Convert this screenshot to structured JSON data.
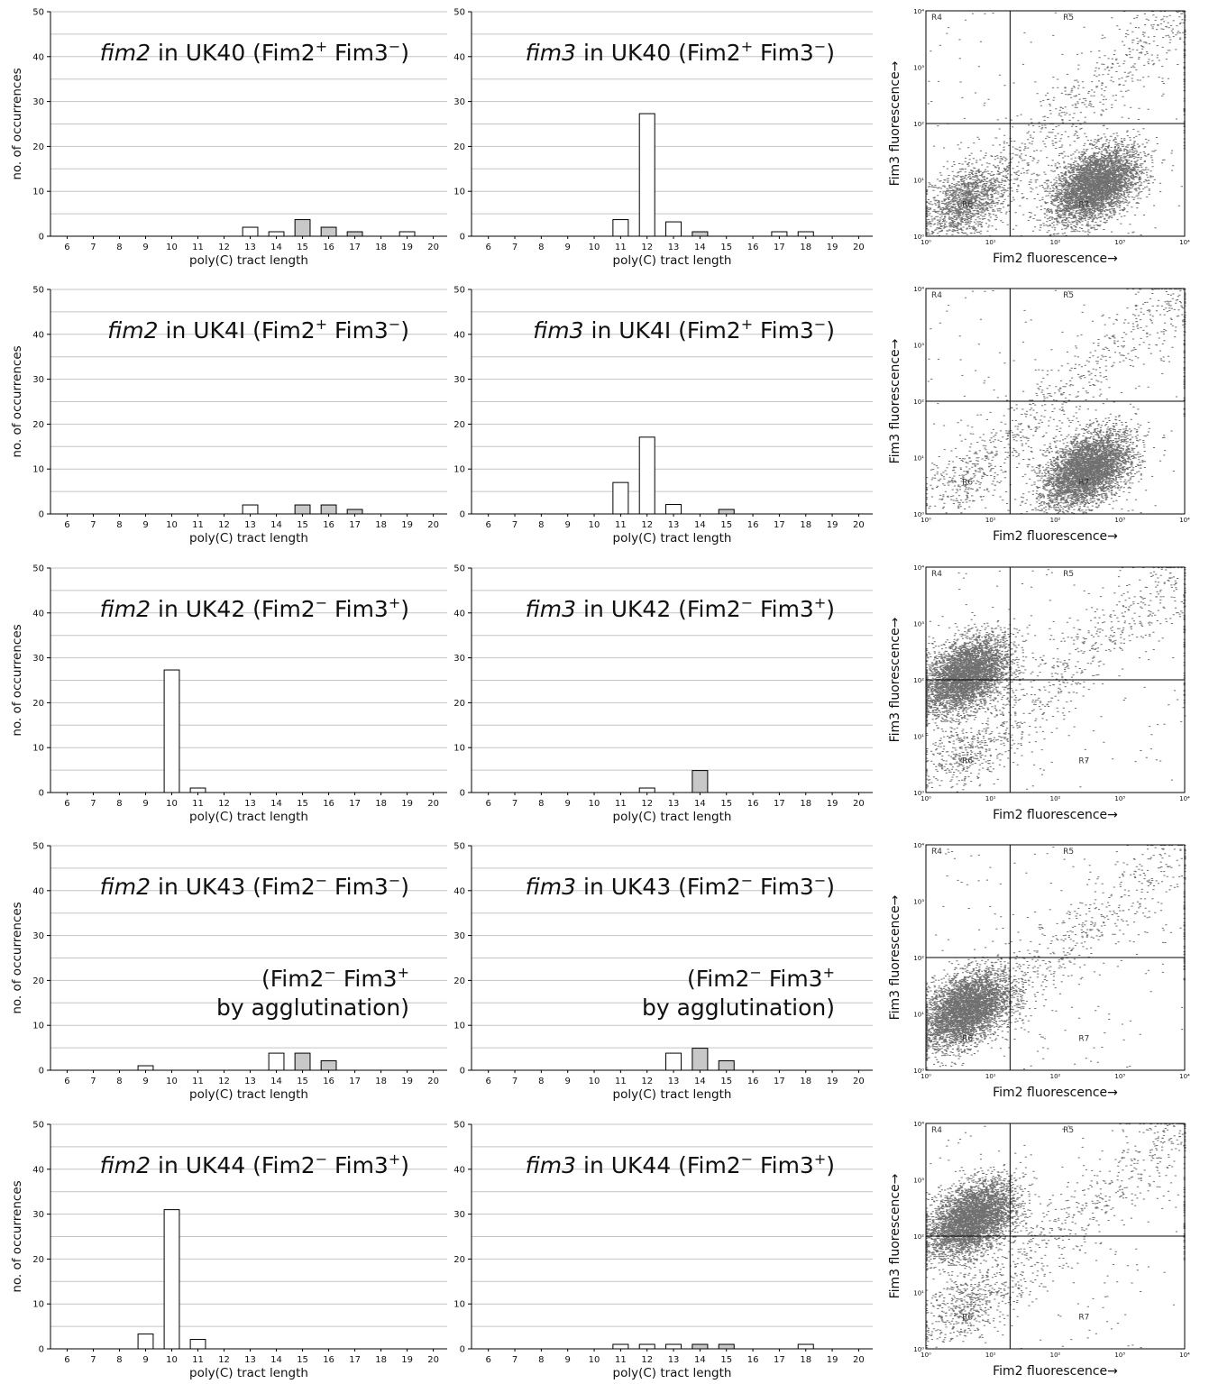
{
  "xlabel": "poly(C) tract length",
  "ylabel": "no. of occurrences",
  "flow_xlabel": "Fim2  fluorescence→",
  "flow_ylabel": "Fim3 fluorescence→",
  "flow_region_labels": [
    "R4",
    "R5",
    "R6",
    "R7"
  ],
  "flow_tick_labels": [
    "10⁰",
    "10¹",
    "10²",
    "10³",
    "10⁴"
  ],
  "colors": {
    "open_bar": "#ffffff",
    "grey_bar": "#c8c8c8",
    "dots": "#707070",
    "grid": "#c4c4c4"
  },
  "chart_data": [
    {
      "type": "bar",
      "panel": "fim2 in UK40",
      "annotation": {
        "gene": "fim2",
        "rest": " in UK40 (Fim2",
        "s1": "+",
        "mid": " Fim3",
        "s2": "−",
        "end": ")"
      },
      "sub_annotation": [],
      "categories": [
        "6",
        "7",
        "8",
        "9",
        "10",
        "11",
        "12",
        "13",
        "14",
        "15",
        "16",
        "17",
        "18",
        "19",
        "20"
      ],
      "series": [
        {
          "values": [
            0,
            0,
            0,
            0,
            0,
            0,
            0,
            2,
            1,
            0,
            0,
            0,
            0,
            1,
            0
          ]
        },
        {
          "values": [
            0,
            0,
            0,
            0,
            0,
            0,
            0,
            0,
            0,
            3.7,
            2,
            1,
            0,
            0,
            0
          ]
        }
      ],
      "ylim": [
        0,
        50
      ]
    },
    {
      "type": "bar",
      "panel": "fim3 in UK40",
      "annotation": {
        "gene": "fim3",
        "rest": " in UK40 (Fim2",
        "s1": "+",
        "mid": " Fim3",
        "s2": "−",
        "end": ")"
      },
      "sub_annotation": [],
      "categories": [
        "6",
        "7",
        "8",
        "9",
        "10",
        "11",
        "12",
        "13",
        "14",
        "15",
        "16",
        "17",
        "18",
        "19",
        "20"
      ],
      "series": [
        {
          "values": [
            0,
            0,
            0,
            0,
            0,
            3.7,
            27.3,
            3.2,
            0,
            0,
            0,
            1,
            1,
            0,
            0
          ]
        },
        {
          "values": [
            0,
            0,
            0,
            0,
            0,
            0,
            0,
            0,
            1,
            0,
            0,
            0,
            0,
            0,
            0
          ]
        }
      ],
      "ylim": [
        0,
        50
      ]
    },
    {
      "type": "bar",
      "panel": "fim2 in UK41",
      "annotation": {
        "gene": "fim2",
        "rest": " in UK4I (Fim2",
        "s1": "+",
        "mid": " Fim3",
        "s2": "−",
        "end": ")"
      },
      "sub_annotation": [],
      "categories": [
        "6",
        "7",
        "8",
        "9",
        "10",
        "11",
        "12",
        "13",
        "14",
        "15",
        "16",
        "17",
        "18",
        "19",
        "20"
      ],
      "series": [
        {
          "values": [
            0,
            0,
            0,
            0,
            0,
            0,
            0,
            2,
            0,
            0,
            0,
            0,
            0,
            0,
            0
          ]
        },
        {
          "values": [
            0,
            0,
            0,
            0,
            0,
            0,
            0,
            0,
            0,
            2,
            2,
            1,
            0,
            0,
            0
          ]
        }
      ],
      "ylim": [
        0,
        50
      ]
    },
    {
      "type": "bar",
      "panel": "fim3 in UK41",
      "annotation": {
        "gene": "fim3",
        "rest": " in UK4I (Fim2",
        "s1": "+",
        "mid": " Fim3",
        "s2": "−",
        "end": ")"
      },
      "sub_annotation": [],
      "categories": [
        "6",
        "7",
        "8",
        "9",
        "10",
        "11",
        "12",
        "13",
        "14",
        "15",
        "16",
        "17",
        "18",
        "19",
        "20"
      ],
      "series": [
        {
          "values": [
            0,
            0,
            0,
            0,
            0,
            7,
            17.1,
            2.1,
            0,
            0,
            0,
            0,
            0,
            0,
            0
          ]
        },
        {
          "values": [
            0,
            0,
            0,
            0,
            0,
            0,
            0,
            0,
            0,
            1,
            0,
            0,
            0,
            0,
            0
          ]
        }
      ],
      "ylim": [
        0,
        50
      ]
    },
    {
      "type": "bar",
      "panel": "fim2 in UK42",
      "annotation": {
        "gene": "fim2",
        "rest": " in UK42 (Fim2",
        "s1": "−",
        "mid": " Fim3",
        "s2": "+",
        "end": ")"
      },
      "sub_annotation": [],
      "categories": [
        "6",
        "7",
        "8",
        "9",
        "10",
        "11",
        "12",
        "13",
        "14",
        "15",
        "16",
        "17",
        "18",
        "19",
        "20"
      ],
      "series": [
        {
          "values": [
            0,
            0,
            0,
            0,
            27.3,
            1,
            0,
            0,
            0,
            0,
            0,
            0,
            0,
            0,
            0
          ]
        },
        {
          "values": [
            0,
            0,
            0,
            0,
            0,
            0,
            0,
            0,
            0,
            0,
            0,
            0,
            0,
            0,
            0
          ]
        }
      ],
      "ylim": [
        0,
        50
      ]
    },
    {
      "type": "bar",
      "panel": "fim3 in UK42",
      "annotation": {
        "gene": "fim3",
        "rest": " in UK42 (Fim2",
        "s1": "−",
        "mid": " Fim3",
        "s2": "+",
        "end": ")"
      },
      "sub_annotation": [],
      "categories": [
        "6",
        "7",
        "8",
        "9",
        "10",
        "11",
        "12",
        "13",
        "14",
        "15",
        "16",
        "17",
        "18",
        "19",
        "20"
      ],
      "series": [
        {
          "values": [
            0,
            0,
            0,
            0,
            0,
            0,
            1,
            0,
            0,
            0,
            0,
            0,
            0,
            0,
            0
          ]
        },
        {
          "values": [
            0,
            0,
            0,
            0,
            0,
            0,
            0,
            0,
            4.9,
            0,
            0,
            0,
            0,
            0,
            0
          ]
        }
      ],
      "ylim": [
        0,
        50
      ]
    },
    {
      "type": "bar",
      "panel": "fim2 in UK43",
      "annotation": {
        "gene": "fim2",
        "rest": " in UK43 (Fim2",
        "s1": "−",
        "mid": " Fim3",
        "s2": "−",
        "end": ")"
      },
      "sub_annotation": [
        {
          "a": "(Fim2",
          "s1": "−",
          "b": " Fim3",
          "s2": "+"
        },
        {
          "a": "by agglutination)",
          "s1": "",
          "b": "",
          "s2": ""
        }
      ],
      "categories": [
        "6",
        "7",
        "8",
        "9",
        "10",
        "11",
        "12",
        "13",
        "14",
        "15",
        "16",
        "17",
        "18",
        "19",
        "20"
      ],
      "series": [
        {
          "values": [
            0,
            0,
            0,
            1,
            0,
            0,
            0,
            0,
            3.8,
            0,
            0,
            0,
            0,
            0,
            0
          ]
        },
        {
          "values": [
            0,
            0,
            0,
            0,
            0,
            0,
            0,
            0,
            0,
            3.8,
            2.1,
            0,
            0,
            0,
            0
          ]
        }
      ],
      "ylim": [
        0,
        50
      ]
    },
    {
      "type": "bar",
      "panel": "fim3 in UK43",
      "annotation": {
        "gene": "fim3",
        "rest": " in UK43 (Fim2",
        "s1": "−",
        "mid": " Fim3",
        "s2": "−",
        "end": ")"
      },
      "sub_annotation": [
        {
          "a": "(Fim2",
          "s1": "−",
          "b": " Fim3",
          "s2": "+"
        },
        {
          "a": "by agglutination)",
          "s1": "",
          "b": "",
          "s2": ""
        }
      ],
      "categories": [
        "6",
        "7",
        "8",
        "9",
        "10",
        "11",
        "12",
        "13",
        "14",
        "15",
        "16",
        "17",
        "18",
        "19",
        "20"
      ],
      "series": [
        {
          "values": [
            0,
            0,
            0,
            0,
            0,
            0,
            0,
            3.8,
            0,
            0,
            0,
            0,
            0,
            0,
            0
          ]
        },
        {
          "values": [
            0,
            0,
            0,
            0,
            0,
            0,
            0,
            0,
            4.9,
            2.1,
            0,
            0,
            0,
            0,
            0
          ]
        }
      ],
      "ylim": [
        0,
        50
      ]
    },
    {
      "type": "bar",
      "panel": "fim2 in UK44",
      "annotation": {
        "gene": "fim2",
        "rest": " in UK44 (Fim2",
        "s1": "−",
        "mid": " Fim3",
        "s2": "+",
        "end": ")"
      },
      "sub_annotation": [],
      "categories": [
        "6",
        "7",
        "8",
        "9",
        "10",
        "11",
        "12",
        "13",
        "14",
        "15",
        "16",
        "17",
        "18",
        "19",
        "20"
      ],
      "series": [
        {
          "values": [
            0,
            0,
            0,
            3.3,
            31,
            2.1,
            0,
            0,
            0,
            0,
            0,
            0,
            0,
            0,
            0
          ]
        },
        {
          "values": [
            0,
            0,
            0,
            0,
            0,
            0,
            0,
            0,
            0,
            0,
            0,
            0,
            0,
            0,
            0
          ]
        }
      ],
      "ylim": [
        0,
        50
      ]
    },
    {
      "type": "bar",
      "panel": "fim3 in UK44",
      "annotation": {
        "gene": "fim3",
        "rest": " in UK44 (Fim2",
        "s1": "−",
        "mid": " Fim3",
        "s2": "+",
        "end": ")"
      },
      "sub_annotation": [],
      "categories": [
        "6",
        "7",
        "8",
        "9",
        "10",
        "11",
        "12",
        "13",
        "14",
        "15",
        "16",
        "17",
        "18",
        "19",
        "20"
      ],
      "series": [
        {
          "values": [
            0,
            0,
            0,
            0,
            0,
            1,
            1,
            1,
            0,
            0,
            0,
            0,
            1,
            0,
            0
          ]
        },
        {
          "values": [
            0,
            0,
            0,
            0,
            0,
            0,
            0,
            0,
            1,
            1,
            0,
            0,
            0,
            0,
            0
          ]
        }
      ],
      "ylim": [
        0,
        50
      ]
    },
    {
      "type": "scatter",
      "panel": "UK40 flow cytometry",
      "x_scale": "log",
      "y_scale": "log",
      "xlim": [
        1,
        10000
      ],
      "ylim": [
        1,
        10000
      ],
      "gate_x": 20,
      "gate_y": 100,
      "clusters": [
        {
          "x": 4,
          "y": 4,
          "n": 1500
        },
        {
          "x": 400,
          "y": 8,
          "n": 4200
        }
      ]
    },
    {
      "type": "scatter",
      "panel": "UK41 flow cytometry",
      "x_scale": "log",
      "y_scale": "log",
      "xlim": [
        1,
        10000
      ],
      "ylim": [
        1,
        10000
      ],
      "gate_x": 20,
      "gate_y": 100,
      "clusters": [
        {
          "x": 4,
          "y": 4,
          "n": 300
        },
        {
          "x": 300,
          "y": 6,
          "n": 4200
        }
      ]
    },
    {
      "type": "scatter",
      "panel": "UK42 flow cytometry",
      "x_scale": "log",
      "y_scale": "log",
      "xlim": [
        1,
        10000
      ],
      "ylim": [
        1,
        10000
      ],
      "gate_x": 20,
      "gate_y": 100,
      "clusters": [
        {
          "x": 4,
          "y": 120,
          "n": 4200
        },
        {
          "x": 4,
          "y": 5,
          "n": 400
        }
      ]
    },
    {
      "type": "scatter",
      "panel": "UK43 flow cytometry",
      "x_scale": "log",
      "y_scale": "log",
      "xlim": [
        1,
        10000
      ],
      "ylim": [
        1,
        10000
      ],
      "gate_x": 20,
      "gate_y": 100,
      "clusters": [
        {
          "x": 4,
          "y": 12,
          "n": 4200
        }
      ]
    },
    {
      "type": "scatter",
      "panel": "UK44 flow cytometry",
      "x_scale": "log",
      "y_scale": "log",
      "xlim": [
        1,
        10000
      ],
      "ylim": [
        1,
        10000
      ],
      "gate_x": 20,
      "gate_y": 100,
      "clusters": [
        {
          "x": 5,
          "y": 200,
          "n": 4200
        },
        {
          "x": 4,
          "y": 6,
          "n": 500
        }
      ]
    }
  ]
}
